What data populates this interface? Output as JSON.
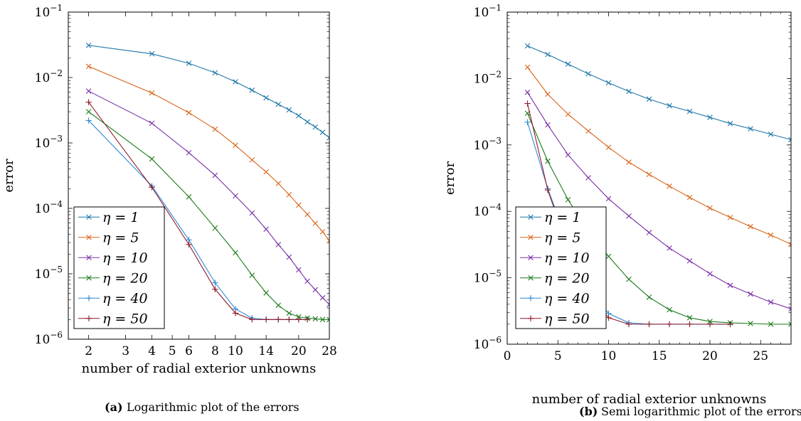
{
  "chart_data": [
    {
      "type": "line",
      "caption_tag": "(a)",
      "caption": "Logarithmic plot of the errors",
      "xlabel": "number of radial exterior unknowns",
      "ylabel": "error",
      "xscale": "log",
      "yscale": "log",
      "xlim": [
        1.6,
        28
      ],
      "ylim": [
        1e-06,
        0.1
      ],
      "xticks": [
        2,
        3,
        4,
        5,
        6,
        8,
        10,
        14,
        20,
        28
      ],
      "xtick_labels": [
        "2",
        "3",
        "4",
        "5",
        "6",
        "8",
        "10",
        "14",
        "20",
        "28"
      ],
      "yticks": [
        1e-06,
        1e-05,
        0.0001,
        0.001,
        0.01,
        0.1
      ],
      "ytick_labels": [
        {
          "base": "10",
          "exp": "−6"
        },
        {
          "base": "10",
          "exp": "−5"
        },
        {
          "base": "10",
          "exp": "−4"
        },
        {
          "base": "10",
          "exp": "−3"
        },
        {
          "base": "10",
          "exp": "−2"
        },
        {
          "base": "10",
          "exp": "−1"
        }
      ],
      "legend_placement": "lower-left",
      "series": [
        {
          "name": "η = 1",
          "color": "#1f77a8",
          "marker": "x",
          "x": [
            2,
            4,
            6,
            8,
            10,
            12,
            14,
            16,
            18,
            20,
            22,
            24,
            26,
            28
          ],
          "y": [
            0.031,
            0.023,
            0.0165,
            0.0118,
            0.0086,
            0.0064,
            0.0049,
            0.0039,
            0.0032,
            0.0026,
            0.0021,
            0.00175,
            0.00145,
            0.0012
          ]
        },
        {
          "name": "η = 5",
          "color": "#d9651b",
          "marker": "x",
          "x": [
            2,
            4,
            6,
            8,
            10,
            12,
            14,
            16,
            18,
            20,
            22,
            24,
            26,
            28
          ],
          "y": [
            0.0148,
            0.0058,
            0.0029,
            0.00162,
            0.00092,
            0.00055,
            0.00036,
            0.00024,
            0.000162,
            0.000112,
            8.1e-05,
            5.9e-05,
            4.4e-05,
            3.2e-05
          ]
        },
        {
          "name": "η = 10",
          "color": "#7b2fa8",
          "marker": "x",
          "x": [
            2,
            4,
            6,
            8,
            10,
            12,
            14,
            16,
            18,
            20,
            22,
            24,
            26,
            28
          ],
          "y": [
            0.0062,
            0.002,
            0.00071,
            0.00032,
            0.000155,
            8.5e-05,
            4.8e-05,
            2.8e-05,
            1.8e-05,
            1.15e-05,
            7.7e-06,
            5.7e-06,
            4.3e-06,
            3.4e-06
          ]
        },
        {
          "name": "η = 20",
          "color": "#1a7a1a",
          "marker": "x",
          "x": [
            2,
            4,
            6,
            8,
            10,
            12,
            14,
            16,
            18,
            20,
            22,
            24,
            26,
            28
          ],
          "y": [
            0.003,
            0.00057,
            0.00015,
            5e-05,
            2.1e-05,
            9.5e-06,
            5.1e-06,
            3.3e-06,
            2.5e-06,
            2.2e-06,
            2.1e-06,
            2.05e-06,
            2e-06,
            2e-06
          ]
        },
        {
          "name": "η = 40",
          "color": "#2f8ad6",
          "marker": "+",
          "x": [
            2,
            4,
            6,
            8,
            10,
            12,
            14,
            16,
            18,
            20,
            22
          ],
          "y": [
            0.0022,
            0.00022,
            3.3e-05,
            7.3e-06,
            2.9e-06,
            2.1e-06,
            2e-06,
            2e-06,
            2e-06,
            2e-06,
            2e-06
          ]
        },
        {
          "name": "η = 50",
          "color": "#8f1a2a",
          "marker": "+",
          "x": [
            2,
            4,
            6,
            8,
            10,
            12,
            14,
            16,
            18,
            20,
            22
          ],
          "y": [
            0.0042,
            0.00021,
            2.8e-05,
            5.8e-06,
            2.5e-06,
            2e-06,
            2e-06,
            2e-06,
            2e-06,
            2e-06,
            2e-06
          ]
        }
      ]
    },
    {
      "type": "line",
      "caption_tag": "(b)",
      "caption": "Semi logarithmic plot of the errors",
      "xlabel": "number of radial exterior unknowns",
      "ylabel": "error",
      "xscale": "linear",
      "yscale": "log",
      "xlim": [
        0,
        28
      ],
      "ylim": [
        1e-06,
        0.1
      ],
      "xticks": [
        0,
        5,
        10,
        15,
        20,
        25
      ],
      "xtick_labels": [
        "0",
        "5",
        "10",
        "15",
        "20",
        "25"
      ],
      "yticks": [
        1e-06,
        1e-05,
        0.0001,
        0.001,
        0.01,
        0.1
      ],
      "ytick_labels": [
        {
          "base": "10",
          "exp": "−6"
        },
        {
          "base": "10",
          "exp": "−5"
        },
        {
          "base": "10",
          "exp": "−4"
        },
        {
          "base": "10",
          "exp": "−3"
        },
        {
          "base": "10",
          "exp": "−2"
        },
        {
          "base": "10",
          "exp": "−1"
        }
      ],
      "legend_placement": "lower-left",
      "series": [
        {
          "name": "η = 1",
          "color": "#1f77a8",
          "marker": "x",
          "x": [
            2,
            4,
            6,
            8,
            10,
            12,
            14,
            16,
            18,
            20,
            22,
            24,
            26,
            28
          ],
          "y": [
            0.031,
            0.023,
            0.0165,
            0.0118,
            0.0086,
            0.0064,
            0.0049,
            0.0039,
            0.0032,
            0.0026,
            0.0021,
            0.00175,
            0.00145,
            0.0012
          ]
        },
        {
          "name": "η = 5",
          "color": "#d9651b",
          "marker": "x",
          "x": [
            2,
            4,
            6,
            8,
            10,
            12,
            14,
            16,
            18,
            20,
            22,
            24,
            26,
            28
          ],
          "y": [
            0.0148,
            0.0058,
            0.0029,
            0.00162,
            0.00092,
            0.00055,
            0.00036,
            0.00024,
            0.000162,
            0.000112,
            8.1e-05,
            5.9e-05,
            4.4e-05,
            3.2e-05
          ]
        },
        {
          "name": "η = 10",
          "color": "#7b2fa8",
          "marker": "x",
          "x": [
            2,
            4,
            6,
            8,
            10,
            12,
            14,
            16,
            18,
            20,
            22,
            24,
            26,
            28
          ],
          "y": [
            0.0062,
            0.002,
            0.00071,
            0.00032,
            0.000155,
            8.5e-05,
            4.8e-05,
            2.8e-05,
            1.8e-05,
            1.15e-05,
            7.7e-06,
            5.7e-06,
            4.3e-06,
            3.4e-06
          ]
        },
        {
          "name": "η = 20",
          "color": "#1a7a1a",
          "marker": "x",
          "x": [
            2,
            4,
            6,
            8,
            10,
            12,
            14,
            16,
            18,
            20,
            22,
            24,
            26,
            28
          ],
          "y": [
            0.003,
            0.00057,
            0.00015,
            5e-05,
            2.1e-05,
            9.5e-06,
            5.1e-06,
            3.3e-06,
            2.5e-06,
            2.2e-06,
            2.1e-06,
            2.05e-06,
            2e-06,
            2e-06
          ]
        },
        {
          "name": "η = 40",
          "color": "#2f8ad6",
          "marker": "+",
          "x": [
            2,
            4,
            6,
            8,
            10,
            12,
            14,
            16,
            18,
            20,
            22
          ],
          "y": [
            0.0022,
            0.00022,
            3.3e-05,
            7.3e-06,
            2.9e-06,
            2.1e-06,
            2e-06,
            2e-06,
            2e-06,
            2e-06,
            2e-06
          ]
        },
        {
          "name": "η = 50",
          "color": "#8f1a2a",
          "marker": "+",
          "x": [
            2,
            4,
            6,
            8,
            10,
            12,
            14,
            16,
            18,
            20,
            22
          ],
          "y": [
            0.0042,
            0.00021,
            2.8e-05,
            5.8e-06,
            2.5e-06,
            2e-06,
            2e-06,
            2e-06,
            2e-06,
            2e-06,
            2e-06
          ]
        }
      ]
    }
  ]
}
